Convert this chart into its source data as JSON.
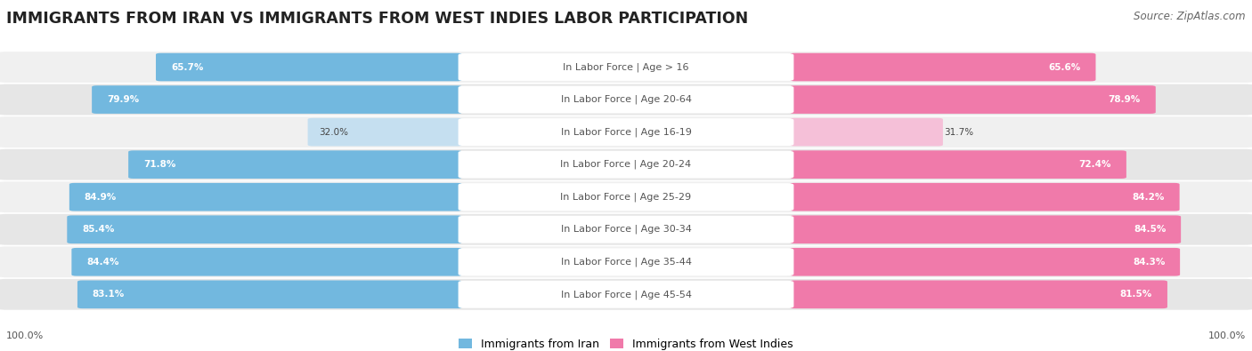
{
  "title": "IMMIGRANTS FROM IRAN VS IMMIGRANTS FROM WEST INDIES LABOR PARTICIPATION",
  "source": "Source: ZipAtlas.com",
  "categories": [
    "In Labor Force | Age > 16",
    "In Labor Force | Age 20-64",
    "In Labor Force | Age 16-19",
    "In Labor Force | Age 20-24",
    "In Labor Force | Age 25-29",
    "In Labor Force | Age 30-34",
    "In Labor Force | Age 35-44",
    "In Labor Force | Age 45-54"
  ],
  "iran_values": [
    65.7,
    79.9,
    32.0,
    71.8,
    84.9,
    85.4,
    84.4,
    83.1
  ],
  "west_indies_values": [
    65.6,
    78.9,
    31.7,
    72.4,
    84.2,
    84.5,
    84.3,
    81.5
  ],
  "iran_color": "#72b8df",
  "iran_color_light": "#c5dff0",
  "west_indies_color": "#f07aaa",
  "west_indies_color_light": "#f5c0d8",
  "row_bg_even": "#f0f0f0",
  "row_bg_odd": "#e6e6e6",
  "title_fontsize": 12.5,
  "label_fontsize": 8.0,
  "value_fontsize": 7.5,
  "legend_fontsize": 9,
  "axis_label_fontsize": 8,
  "max_value": 100.0
}
